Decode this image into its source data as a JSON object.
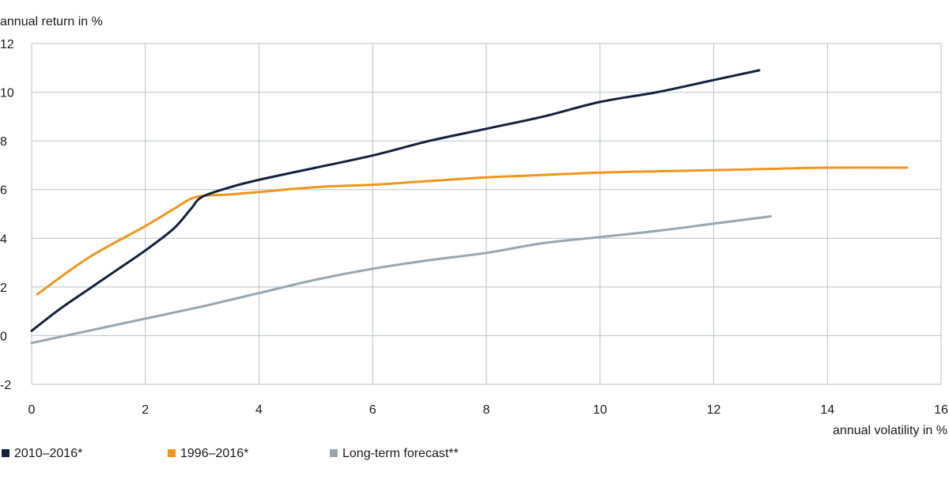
{
  "chart_data": {
    "type": "line",
    "xlabel": "annual volatility in %",
    "ylabel": "annual return in %",
    "xlim": [
      0,
      16
    ],
    "ylim": [
      -2,
      12
    ],
    "x_ticks": [
      0,
      2,
      4,
      6,
      8,
      10,
      12,
      14,
      16
    ],
    "y_ticks": [
      -2,
      0,
      2,
      4,
      6,
      8,
      10,
      12
    ],
    "grid": true,
    "legend_position": "bottom",
    "series": [
      {
        "name": "2010–2016*",
        "color": "#13213f",
        "points": [
          [
            0.0,
            0.2
          ],
          [
            0.5,
            1.1
          ],
          [
            1.0,
            1.9
          ],
          [
            1.5,
            2.7
          ],
          [
            2.0,
            3.5
          ],
          [
            2.5,
            4.4
          ],
          [
            2.8,
            5.2
          ],
          [
            3.0,
            5.7
          ],
          [
            3.5,
            6.1
          ],
          [
            4.0,
            6.4
          ],
          [
            5.0,
            6.9
          ],
          [
            6.0,
            7.4
          ],
          [
            7.0,
            8.0
          ],
          [
            8.0,
            8.5
          ],
          [
            9.0,
            9.0
          ],
          [
            10.0,
            9.6
          ],
          [
            11.0,
            10.0
          ],
          [
            12.0,
            10.5
          ],
          [
            12.8,
            10.9
          ]
        ]
      },
      {
        "name": "1996–2016*",
        "color": "#f0961e",
        "points": [
          [
            0.1,
            1.7
          ],
          [
            1.0,
            3.2
          ],
          [
            2.0,
            4.5
          ],
          [
            2.5,
            5.2
          ],
          [
            2.9,
            5.7
          ],
          [
            3.5,
            5.8
          ],
          [
            4.0,
            5.9
          ],
          [
            5.0,
            6.1
          ],
          [
            6.0,
            6.2
          ],
          [
            7.0,
            6.35
          ],
          [
            8.0,
            6.5
          ],
          [
            9.0,
            6.6
          ],
          [
            10.0,
            6.7
          ],
          [
            11.0,
            6.75
          ],
          [
            12.0,
            6.8
          ],
          [
            13.0,
            6.85
          ],
          [
            14.0,
            6.9
          ],
          [
            15.4,
            6.9
          ]
        ]
      },
      {
        "name": "Long-term forecast**",
        "color": "#97a6af",
        "points": [
          [
            0.0,
            -0.3
          ],
          [
            1.0,
            0.2
          ],
          [
            2.0,
            0.7
          ],
          [
            3.0,
            1.2
          ],
          [
            4.0,
            1.75
          ],
          [
            5.0,
            2.3
          ],
          [
            6.0,
            2.75
          ],
          [
            7.0,
            3.1
          ],
          [
            8.0,
            3.4
          ],
          [
            9.0,
            3.8
          ],
          [
            10.0,
            4.05
          ],
          [
            11.0,
            4.3
          ],
          [
            12.0,
            4.6
          ],
          [
            13.0,
            4.9
          ]
        ]
      }
    ]
  }
}
